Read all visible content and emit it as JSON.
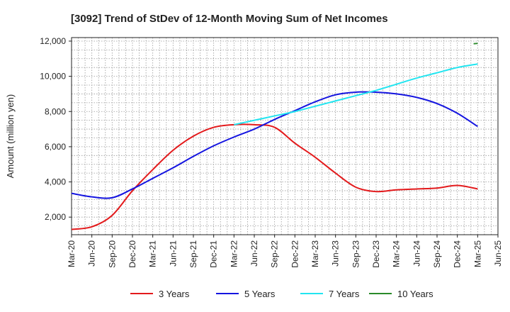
{
  "chart_data": {
    "type": "line",
    "title": "[3092]  Trend of StDev of 12-Month Moving Sum of Net Incomes",
    "xlabel": "",
    "ylabel": "Amount (million yen)",
    "ylim": [
      1000,
      12200
    ],
    "yticks": [
      2000,
      4000,
      6000,
      8000,
      10000,
      12000
    ],
    "ytick_labels": [
      "2,000",
      "4,000",
      "6,000",
      "8,000",
      "10,000",
      "12,000"
    ],
    "x_tick_labels": [
      "Mar-20",
      "Jun-20",
      "Sep-20",
      "Dec-20",
      "Mar-21",
      "Jun-21",
      "Sep-21",
      "Dec-21",
      "Mar-22",
      "Jun-22",
      "Sep-22",
      "Dec-22",
      "Mar-23",
      "Jun-23",
      "Sep-23",
      "Dec-23",
      "Mar-24",
      "Jun-24",
      "Sep-24",
      "Dec-24",
      "Mar-25",
      "Jun-25"
    ],
    "grid": true,
    "legend_position": "bottom",
    "series": [
      {
        "name": "3 Years",
        "color": "#e31a1c",
        "points": [
          [
            0,
            1300
          ],
          [
            1,
            1450
          ],
          [
            2,
            2100
          ],
          [
            3,
            3500
          ],
          [
            4,
            4700
          ],
          [
            5,
            5800
          ],
          [
            6,
            6600
          ],
          [
            7,
            7100
          ],
          [
            8,
            7250
          ],
          [
            9,
            7250
          ],
          [
            10,
            7100
          ],
          [
            11,
            6200
          ],
          [
            12,
            5400
          ],
          [
            13,
            4500
          ],
          [
            14,
            3700
          ],
          [
            15,
            3450
          ],
          [
            16,
            3550
          ],
          [
            17,
            3600
          ],
          [
            18,
            3650
          ],
          [
            19,
            3800
          ],
          [
            20,
            3600
          ]
        ]
      },
      {
        "name": "5 Years",
        "color": "#1515e0",
        "points": [
          [
            0,
            3350
          ],
          [
            1,
            3150
          ],
          [
            2,
            3100
          ],
          [
            3,
            3600
          ],
          [
            4,
            4200
          ],
          [
            5,
            4800
          ],
          [
            6,
            5450
          ],
          [
            7,
            6050
          ],
          [
            8,
            6550
          ],
          [
            9,
            7000
          ],
          [
            10,
            7550
          ],
          [
            11,
            8050
          ],
          [
            12,
            8550
          ],
          [
            13,
            8950
          ],
          [
            14,
            9100
          ],
          [
            15,
            9100
          ],
          [
            16,
            9000
          ],
          [
            17,
            8800
          ],
          [
            18,
            8450
          ],
          [
            19,
            7900
          ],
          [
            20,
            7150
          ]
        ]
      },
      {
        "name": "7 Years",
        "color": "#22e5f0",
        "points": [
          [
            8,
            7250
          ],
          [
            9,
            7500
          ],
          [
            10,
            7750
          ],
          [
            11,
            8000
          ],
          [
            12,
            8300
          ],
          [
            13,
            8600
          ],
          [
            14,
            8900
          ],
          [
            15,
            9200
          ],
          [
            16,
            9550
          ],
          [
            17,
            9900
          ],
          [
            18,
            10200
          ],
          [
            19,
            10500
          ],
          [
            20,
            10700
          ]
        ]
      },
      {
        "name": "10 Years",
        "color": "#2a8a2a",
        "points": [
          [
            19.8,
            11850
          ],
          [
            20,
            11870
          ]
        ]
      }
    ]
  }
}
